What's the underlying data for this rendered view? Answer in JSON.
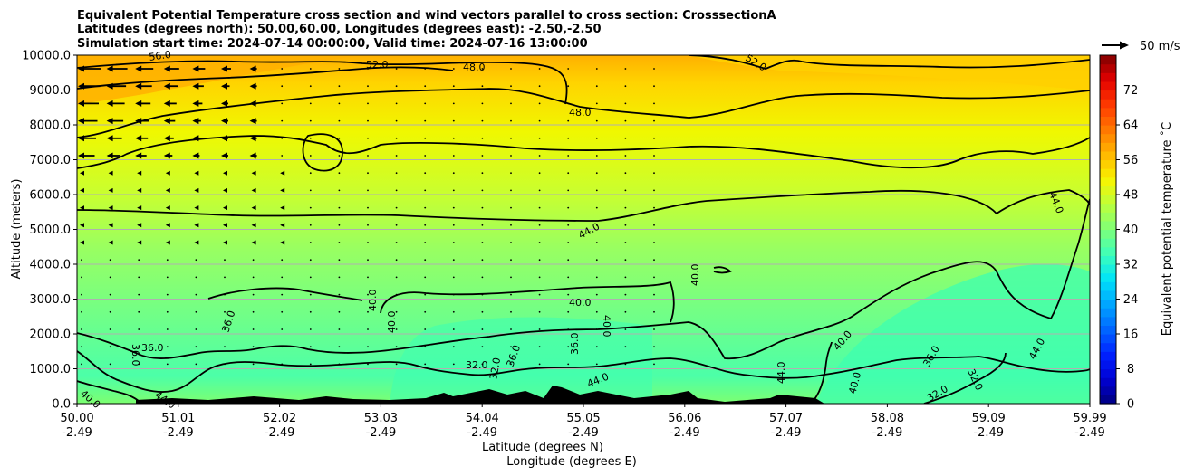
{
  "chart_data": {
    "type": "contour",
    "title_lines": [
      "Equivalent Potential Temperature cross section and wind vectors parallel to cross section: CrosssectionA",
      "Latitudes (degrees north): 50.00,60.00, Longitudes (degrees east): -2.50,-2.50",
      "Simulation start time: 2024-07-14 00:00:00, Valid time: 2024-07-16 13:00:00"
    ],
    "ylabel": "Altitude (meters)",
    "xlabel_lines": [
      "Latitude (degrees N)",
      "Longitude (degrees E)"
    ],
    "ylim": [
      0,
      10000
    ],
    "y_ticks": [
      "0.0",
      "1000.0",
      "2000.0",
      "3000.0",
      "4000.0",
      "5000.0",
      "6000.0",
      "7000.0",
      "8000.0",
      "9000.0",
      "10000.0"
    ],
    "x_ticks": [
      {
        "lat": "50.00",
        "lon": "-2.49"
      },
      {
        "lat": "51.01",
        "lon": "-2.49"
      },
      {
        "lat": "52.02",
        "lon": "-2.49"
      },
      {
        "lat": "53.03",
        "lon": "-2.49"
      },
      {
        "lat": "54.04",
        "lon": "-2.49"
      },
      {
        "lat": "55.05",
        "lon": "-2.49"
      },
      {
        "lat": "56.06",
        "lon": "-2.49"
      },
      {
        "lat": "57.07",
        "lon": "-2.49"
      },
      {
        "lat": "58.08",
        "lon": "-2.49"
      },
      {
        "lat": "59.09",
        "lon": "-2.49"
      },
      {
        "lat": "59.99",
        "lon": "-2.49"
      }
    ],
    "grid": "horizontal",
    "colorbar": {
      "label": "Equivalent potential temperature ˚C",
      "range": [
        0,
        80
      ],
      "ticks": [
        "0",
        "8",
        "16",
        "24",
        "32",
        "40",
        "48",
        "56",
        "64",
        "72"
      ],
      "colors": [
        "#00007f",
        "#0000d4",
        "#0022ff",
        "#0066ff",
        "#00a4ff",
        "#00e4f8",
        "#3dffba",
        "#7dff7a",
        "#baff3d",
        "#f8f500",
        "#ffb900",
        "#ff7a00",
        "#ff3b00",
        "#e40000",
        "#7f0000"
      ]
    },
    "wind_key": "50 m/s",
    "contour_levels": [
      32,
      36,
      40,
      44,
      48,
      52,
      56
    ],
    "contour_labels": [
      "56.0",
      "52.0",
      "48.0",
      "48.0",
      "52.0",
      "44.0",
      "44.0",
      "40.0",
      "40.0",
      "40.0",
      "40.0",
      "40.0",
      "36.0",
      "36.0",
      "36.0",
      "36.0",
      "36.0",
      "32.0",
      "32.0",
      "44.0",
      "44.0",
      "40.0",
      "40.0",
      "36.0",
      "32.0",
      "32.0",
      "44.0",
      "40.0",
      "44.0"
    ]
  }
}
